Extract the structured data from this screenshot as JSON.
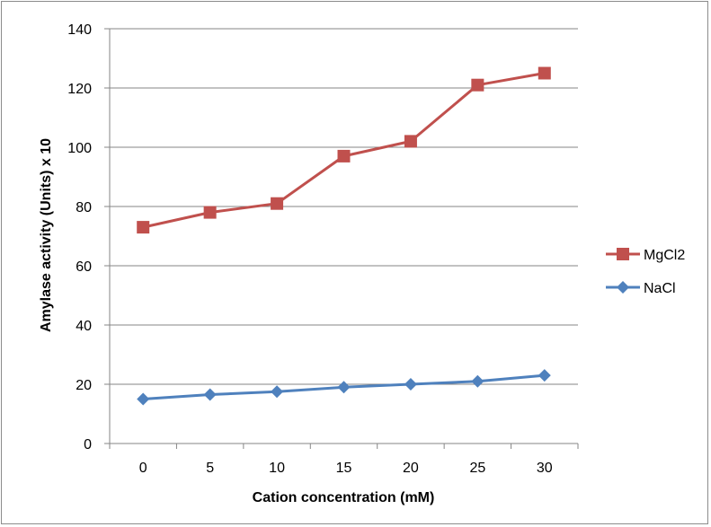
{
  "chart_data": {
    "type": "line",
    "title": "",
    "xlabel": "Cation concentration (mM)",
    "ylabel": "Amylase activity (Units) x 10",
    "categories": [
      "0",
      "5",
      "10",
      "15",
      "20",
      "25",
      "30"
    ],
    "ylim": [
      0,
      140
    ],
    "yticks": [
      "0",
      "20",
      "40",
      "60",
      "80",
      "100",
      "120",
      "140"
    ],
    "grid": "horizontal",
    "legend_position": "right",
    "series": [
      {
        "name": "MgCl2",
        "color": "#c0504d",
        "marker": "square",
        "values": [
          73,
          78,
          81,
          97,
          102,
          121,
          125
        ]
      },
      {
        "name": "NaCl",
        "color": "#4f81bd",
        "marker": "diamond",
        "values": [
          15,
          16.5,
          17.5,
          19,
          20,
          21,
          23
        ]
      }
    ]
  }
}
